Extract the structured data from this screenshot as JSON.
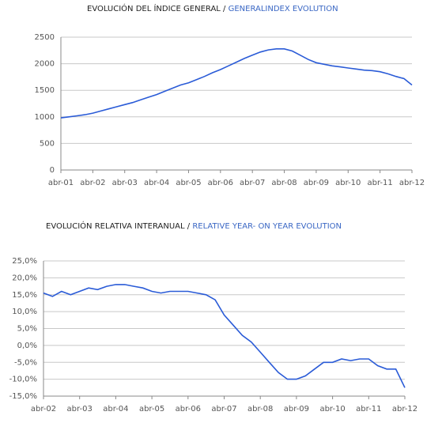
{
  "chart_data": [
    {
      "type": "line",
      "title": "EVOLUCIÓN DEL ÍNDICE GENERAL /",
      "subtitle": "GENERALINDEX EVOLUTION",
      "categories": [
        "abr-01",
        null,
        null,
        null,
        "abr-02",
        null,
        null,
        null,
        "abr-03",
        null,
        null,
        null,
        "abr-04",
        null,
        null,
        null,
        "abr-05",
        null,
        null,
        null,
        "abr-06",
        null,
        null,
        null,
        "abr-07",
        null,
        null,
        null,
        "abr-08",
        null,
        null,
        null,
        "abr-09",
        null,
        null,
        null,
        "abr-10",
        null,
        null,
        null,
        "abr-11",
        null,
        null,
        null,
        "abr-12"
      ],
      "values": [
        980,
        1000,
        1020,
        1040,
        1070,
        1110,
        1150,
        1190,
        1230,
        1270,
        1320,
        1370,
        1420,
        1480,
        1540,
        1600,
        1640,
        1700,
        1760,
        1830,
        1890,
        1960,
        2030,
        2100,
        2160,
        2220,
        2260,
        2280,
        2280,
        2240,
        2160,
        2080,
        2020,
        1990,
        1960,
        1940,
        1920,
        1900,
        1880,
        1870,
        1850,
        1810,
        1760,
        1720,
        1600
      ],
      "color": "#2a5bd7",
      "ylim": [
        0,
        2500
      ],
      "yticks": [
        0,
        500,
        1000,
        1500,
        2000,
        2500
      ],
      "grid": true
    },
    {
      "type": "line",
      "title": "EVOLUCIÓN RELATIVA INTERANUAL /",
      "subtitle": "RELATIVE YEAR- ON YEAR EVOLUTION",
      "categories": [
        "abr-02",
        null,
        null,
        null,
        "abr-03",
        null,
        null,
        null,
        "abr-04",
        null,
        null,
        null,
        "abr-05",
        null,
        null,
        null,
        "abr-06",
        null,
        null,
        null,
        "abr-07",
        null,
        null,
        null,
        "abr-08",
        null,
        null,
        null,
        "abr-09",
        null,
        null,
        null,
        "abr-10",
        null,
        null,
        null,
        "abr-11",
        null,
        null,
        null,
        "abr-12"
      ],
      "values": [
        15.5,
        14.5,
        16,
        15,
        16,
        17,
        16.5,
        17.5,
        18,
        18,
        17.5,
        17,
        16,
        15.5,
        16,
        16,
        16,
        15.5,
        15,
        13.5,
        9,
        6,
        3,
        1,
        -2,
        -5,
        -8,
        -10,
        -10,
        -9,
        -7,
        -5,
        -5,
        -4,
        -4.5,
        -4,
        -4,
        -6,
        -7,
        -7,
        -12.5
      ],
      "color": "#2a5bd7",
      "ylim": [
        -15,
        25
      ],
      "yticks": [
        {
          "value": -15,
          "label": "-15,0%"
        },
        {
          "value": -10,
          "label": "-10,0%"
        },
        {
          "value": -5,
          "label": "-5,0%"
        },
        {
          "value": 0,
          "label": "0,0%"
        },
        {
          "value": 5,
          "label": "5,0%"
        },
        {
          "value": 10,
          "label": "10,0%"
        },
        {
          "value": 15,
          "label": "15,0%"
        },
        {
          "value": 20,
          "label": "20,0%"
        },
        {
          "value": 25,
          "label": "25,0%"
        }
      ],
      "grid": true
    }
  ]
}
